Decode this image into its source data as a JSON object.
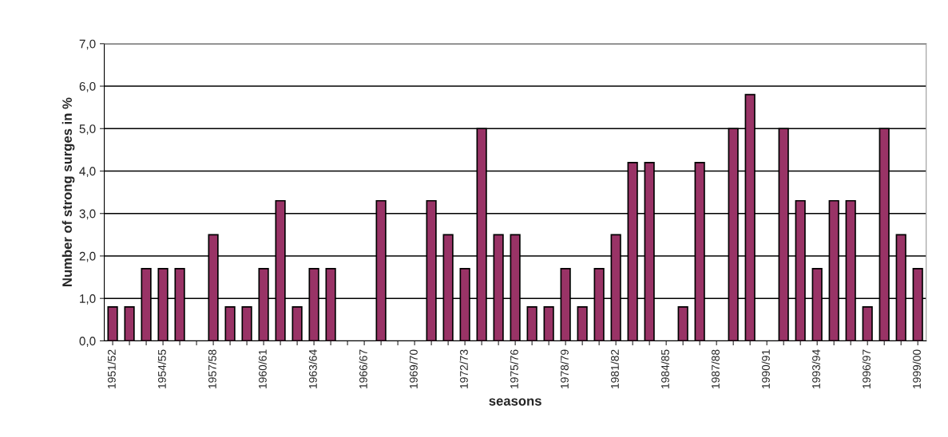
{
  "chart_data": {
    "type": "bar",
    "xlabel": "seasons",
    "ylabel": "Number of strong surges in %",
    "categories": [
      "1951/52",
      null,
      null,
      "1954/55",
      null,
      null,
      "1957/58",
      null,
      null,
      "1960/61",
      null,
      null,
      "1963/64",
      null,
      null,
      "1966/67",
      null,
      null,
      "1969/70",
      null,
      null,
      "1972/73",
      null,
      null,
      "1975/76",
      null,
      null,
      "1978/79",
      null,
      null,
      "1981/82",
      null,
      null,
      "1984/85",
      null,
      null,
      "1987/88",
      null,
      null,
      "1990/91",
      null,
      null,
      "1993/94",
      null,
      null,
      "1996/97",
      null,
      null,
      "1999/00"
    ],
    "values": [
      0.8,
      0.8,
      1.7,
      1.7,
      1.7,
      0,
      2.5,
      0.8,
      0.8,
      1.7,
      3.3,
      0.8,
      1.7,
      1.7,
      0,
      0,
      3.3,
      0,
      0,
      3.3,
      2.5,
      1.7,
      5.0,
      2.5,
      2.5,
      0.8,
      0.8,
      1.7,
      0.8,
      1.7,
      2.5,
      4.2,
      4.2,
      0,
      0.8,
      4.2,
      0,
      5.0,
      5.8,
      0,
      5.0,
      3.3,
      1.7,
      3.3,
      3.3,
      0.8,
      5.0,
      2.5,
      1.7
    ],
    "color": "#993366",
    "ylim": [
      0,
      7
    ],
    "yticks": [
      {
        "value": 0,
        "label": "0,0"
      },
      {
        "value": 1,
        "label": "1,0"
      },
      {
        "value": 2,
        "label": "2,0"
      },
      {
        "value": 3,
        "label": "3,0"
      },
      {
        "value": 4,
        "label": "4,0"
      },
      {
        "value": 5,
        "label": "5,0"
      },
      {
        "value": 6,
        "label": "6,0"
      },
      {
        "value": 7,
        "label": "7,0"
      }
    ],
    "grid": "y"
  }
}
